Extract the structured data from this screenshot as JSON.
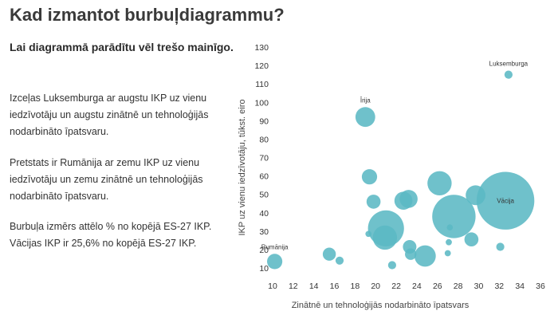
{
  "title": "Kad izmantot burbuļdiagrammu?",
  "subtitle": "Lai diagrammā parādītu vēl trešo mainīgo.",
  "paragraphs": [
    "Izceļas Luksemburga ar augstu IKP uz vienu iedzīvotāju un augstu zinātnē un tehnoloģijās nodarbināto īpatsvaru.",
    "Pretstats ir Rumānija ar zemu IKP uz vienu iedzīvotāju un zemu zinātnē un tehnoloģijās nodarbināto īpatsvaru.",
    "Burbuļa izmērs attēlo % no kopējā ES-27 IKP. Vācijas IKP ir 25,6% no kopējā ES-27 IKP."
  ],
  "colors": {
    "bubble": "#5bb8c4",
    "text": "#333333"
  },
  "chart_data": {
    "type": "scatter",
    "xlabel": "Zinātnē un tehnoloģijās nodarbināto īpatsvars",
    "ylabel": "IKP uz vienu iedzīvotāju, tūkst. eiro",
    "xlim": [
      10,
      36
    ],
    "ylim": [
      5,
      130
    ],
    "xticks": [
      10,
      12,
      14,
      16,
      18,
      20,
      22,
      24,
      26,
      28,
      30,
      32,
      34,
      36
    ],
    "yticks": [
      10,
      20,
      30,
      40,
      50,
      60,
      70,
      80,
      90,
      100,
      110,
      120,
      130
    ],
    "size_meaning": "% no kopējā ES-27 IKP",
    "points": [
      {
        "x": 10.2,
        "y": 13.5,
        "size": 1.8,
        "label": "Rumānija"
      },
      {
        "x": 15.5,
        "y": 17.5,
        "size": 1.3,
        "label": ""
      },
      {
        "x": 16.5,
        "y": 14.0,
        "size": 0.5,
        "label": ""
      },
      {
        "x": 19.0,
        "y": 92.0,
        "size": 3.0,
        "label": "Īrija"
      },
      {
        "x": 19.4,
        "y": 59.5,
        "size": 1.8,
        "label": ""
      },
      {
        "x": 19.8,
        "y": 46.0,
        "size": 1.5,
        "label": ""
      },
      {
        "x": 19.3,
        "y": 28.5,
        "size": 0.25,
        "label": ""
      },
      {
        "x": 21.0,
        "y": 31.5,
        "size": 10.0,
        "label": ""
      },
      {
        "x": 20.9,
        "y": 26.5,
        "size": 4.5,
        "label": ""
      },
      {
        "x": 21.6,
        "y": 11.5,
        "size": 0.5,
        "label": ""
      },
      {
        "x": 22.7,
        "y": 46.5,
        "size": 2.5,
        "label": ""
      },
      {
        "x": 23.2,
        "y": 47.5,
        "size": 2.5,
        "label": ""
      },
      {
        "x": 23.3,
        "y": 21.5,
        "size": 1.4,
        "label": ""
      },
      {
        "x": 23.4,
        "y": 17.5,
        "size": 1.0,
        "label": ""
      },
      {
        "x": 24.8,
        "y": 16.5,
        "size": 3.5,
        "label": ""
      },
      {
        "x": 26.2,
        "y": 56.0,
        "size": 4.5,
        "label": ""
      },
      {
        "x": 27.2,
        "y": 32.0,
        "size": 0.2,
        "label": ""
      },
      {
        "x": 27.1,
        "y": 24.0,
        "size": 0.3,
        "label": ""
      },
      {
        "x": 27.0,
        "y": 18.0,
        "size": 0.3,
        "label": ""
      },
      {
        "x": 27.6,
        "y": 38.0,
        "size": 14.5,
        "label": ""
      },
      {
        "x": 29.3,
        "y": 25.5,
        "size": 1.5,
        "label": ""
      },
      {
        "x": 29.7,
        "y": 49.5,
        "size": 3.0,
        "label": ""
      },
      {
        "x": 32.1,
        "y": 21.5,
        "size": 0.5,
        "label": ""
      },
      {
        "x": 32.6,
        "y": 46.5,
        "size": 25.6,
        "label": "Vācija"
      },
      {
        "x": 32.9,
        "y": 115.0,
        "size": 0.5,
        "label": "Luksemburga"
      }
    ]
  }
}
